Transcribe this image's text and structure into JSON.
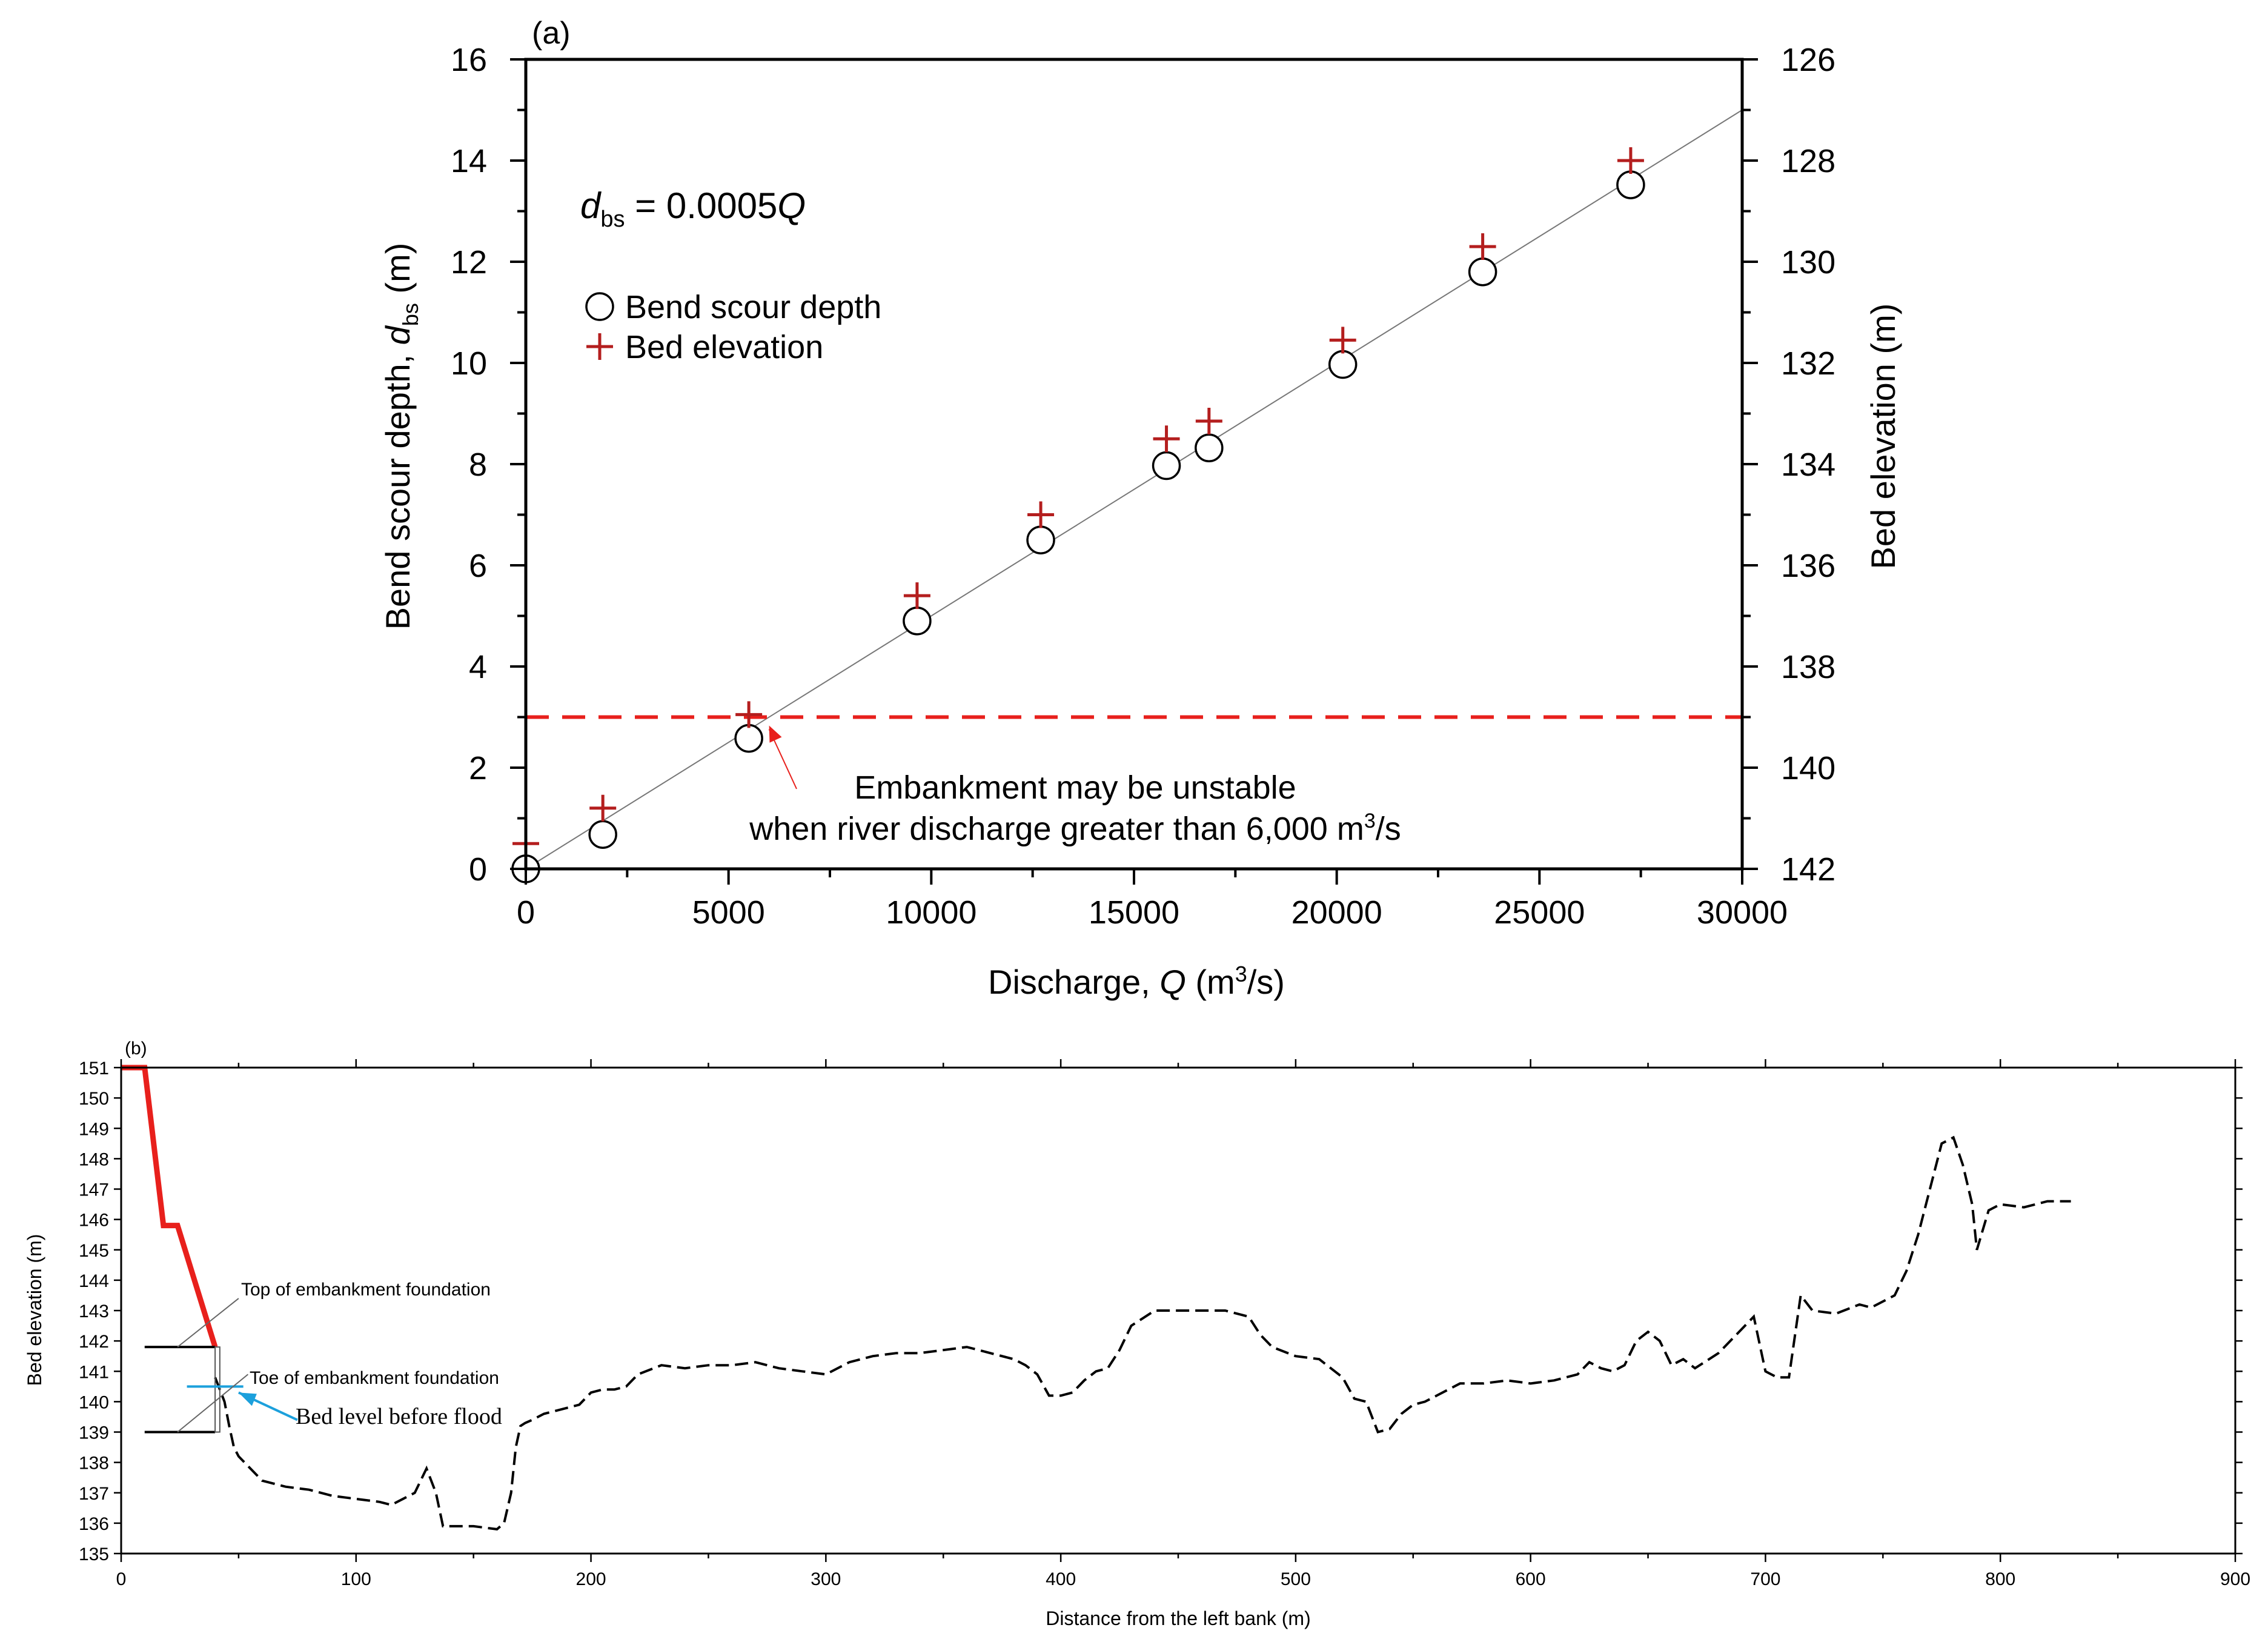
{
  "chart_data": [
    {
      "type": "scatter",
      "panel_label": "(a)",
      "xlabel_prefix": "Discharge, ",
      "xlabel_var": "Q",
      "xlabel_units": " (m",
      "xlabel_sup": "3",
      "xlabel_end": "/s)",
      "ylabel_prefix": "Bend scour depth, ",
      "ylabel_var": "d",
      "ylabel_sub": "bs",
      "ylabel_units": " (m)",
      "y2label": "Bed elevation (m)",
      "xlim": [
        0,
        30000
      ],
      "ylim": [
        0,
        16
      ],
      "y2lim": [
        142,
        126
      ],
      "xticks": [
        0,
        5000,
        10000,
        15000,
        20000,
        25000,
        30000
      ],
      "yticks": [
        0,
        2,
        4,
        6,
        8,
        10,
        12,
        14,
        16
      ],
      "y2ticks": [
        142,
        140,
        138,
        136,
        134,
        132,
        130,
        128,
        126
      ],
      "equation": {
        "var": "d",
        "sub": "bs",
        "rhs": " = 0.0005",
        "x": "Q"
      },
      "fit_line": {
        "slope": 0.0005,
        "x_range": [
          0,
          30000
        ]
      },
      "legend": [
        {
          "marker": "circle",
          "label": "Bend scour depth"
        },
        {
          "marker": "plus",
          "label": "Bed elevation"
        }
      ],
      "series": [
        {
          "name": "Bend scour depth",
          "marker": "circle",
          "x": [
            0,
            1900,
            5500,
            9650,
            12700,
            15800,
            16850,
            20150,
            23600,
            27250
          ],
          "y": [
            0,
            0.68,
            2.58,
            4.9,
            6.5,
            7.97,
            8.32,
            9.97,
            11.8,
            13.52
          ]
        },
        {
          "name": "Bed elevation",
          "marker": "plus",
          "color": "#b41e1e",
          "x": [
            0,
            1900,
            5500,
            9650,
            12700,
            15800,
            16850,
            20150,
            23600,
            27250
          ],
          "y": [
            141.5,
            140.8,
            138.95,
            136.6,
            135.0,
            133.5,
            133.15,
            131.55,
            129.7,
            128.0
          ]
        }
      ],
      "threshold": {
        "y": 3,
        "color": "#e8201c",
        "style": "dashed"
      },
      "annotation": {
        "line1": "Embankment may be unstable",
        "line2": "when river discharge greater than 6,000 m",
        "sup": "3",
        "end": "/s",
        "arrow_to": {
          "x": 6000,
          "y": 3
        }
      }
    },
    {
      "type": "line",
      "panel_label": "(b)",
      "xlabel": "Distance from the left bank (m)",
      "ylabel": "Bed elevation (m)",
      "xlim": [
        0,
        900
      ],
      "ylim": [
        135,
        151
      ],
      "xticks": [
        0,
        100,
        200,
        300,
        400,
        500,
        600,
        700,
        800,
        900
      ],
      "yticks": [
        135,
        136,
        137,
        138,
        139,
        140,
        141,
        142,
        143,
        144,
        145,
        146,
        147,
        148,
        149,
        150,
        151
      ],
      "embankment": {
        "color": "#e8201c",
        "x": [
          0,
          10,
          18,
          24,
          40
        ],
        "y": [
          151,
          151,
          145.8,
          145.8,
          141.8
        ]
      },
      "bed_profile": {
        "style": "dashed",
        "x": [
          40,
          42,
          44,
          46,
          48,
          50,
          55,
          60,
          70,
          80,
          90,
          100,
          110,
          115,
          120,
          125,
          130,
          134,
          137,
          140,
          150,
          160,
          163,
          166,
          168,
          170,
          172,
          175,
          180,
          185,
          190,
          195,
          200,
          205,
          210,
          215,
          220,
          230,
          240,
          250,
          260,
          270,
          275,
          280,
          290,
          300,
          310,
          320,
          330,
          340,
          350,
          360,
          370,
          380,
          385,
          390,
          395,
          400,
          405,
          410,
          415,
          420,
          425,
          430,
          440,
          450,
          460,
          470,
          480,
          485,
          490,
          500,
          510,
          520,
          525,
          530,
          535,
          540,
          545,
          550,
          555,
          560,
          570,
          580,
          590,
          600,
          610,
          620,
          625,
          630,
          635,
          640,
          645,
          650,
          655,
          660,
          665,
          670,
          680,
          690,
          695,
          700,
          705,
          710,
          715,
          720,
          730,
          740,
          745,
          750,
          755,
          760,
          765,
          770,
          775,
          780,
          784,
          788,
          790,
          795,
          800,
          810,
          820,
          830
        ],
        "y": [
          140.8,
          140.4,
          140.0,
          139.2,
          138.5,
          138.2,
          137.8,
          137.4,
          137.2,
          137.1,
          136.9,
          136.8,
          136.7,
          136.6,
          136.8,
          137.0,
          137.8,
          137.0,
          135.9,
          135.9,
          135.9,
          135.8,
          136.0,
          137.0,
          138.5,
          139.2,
          139.3,
          139.4,
          139.6,
          139.7,
          139.8,
          139.9,
          140.3,
          140.4,
          140.4,
          140.5,
          140.9,
          141.2,
          141.1,
          141.2,
          141.2,
          141.3,
          141.2,
          141.1,
          141.0,
          140.9,
          141.3,
          141.5,
          141.6,
          141.6,
          141.7,
          141.8,
          141.6,
          141.4,
          141.2,
          140.9,
          140.2,
          140.2,
          140.3,
          140.7,
          141.0,
          141.1,
          141.7,
          142.5,
          143.0,
          143.0,
          143.0,
          143.0,
          142.8,
          142.2,
          141.8,
          141.5,
          141.4,
          140.8,
          140.1,
          140.0,
          139.0,
          139.1,
          139.6,
          139.9,
          140.0,
          140.2,
          140.6,
          140.6,
          140.7,
          140.6,
          140.7,
          140.9,
          141.3,
          141.1,
          141.0,
          141.2,
          142.0,
          142.3,
          142.0,
          141.2,
          141.4,
          141.1,
          141.6,
          142.4,
          142.8,
          141.0,
          140.8,
          140.8,
          143.5,
          143.0,
          142.9,
          143.2,
          143.1,
          143.3,
          143.5,
          144.3,
          145.5,
          147.0,
          148.5,
          148.7,
          147.8,
          146.5,
          145.0,
          146.3,
          146.5,
          146.4,
          146.6,
          146.6
        ]
      },
      "before_flood_line": {
        "color": "#1ca0dc"
      },
      "annotations": [
        {
          "label": "Top of embankment foundation",
          "elev": 141.8
        },
        {
          "label": "Toe of embankment foundation",
          "elev": 139.0
        },
        {
          "label": "Bed level before flood",
          "elev": 140.5
        }
      ]
    }
  ]
}
